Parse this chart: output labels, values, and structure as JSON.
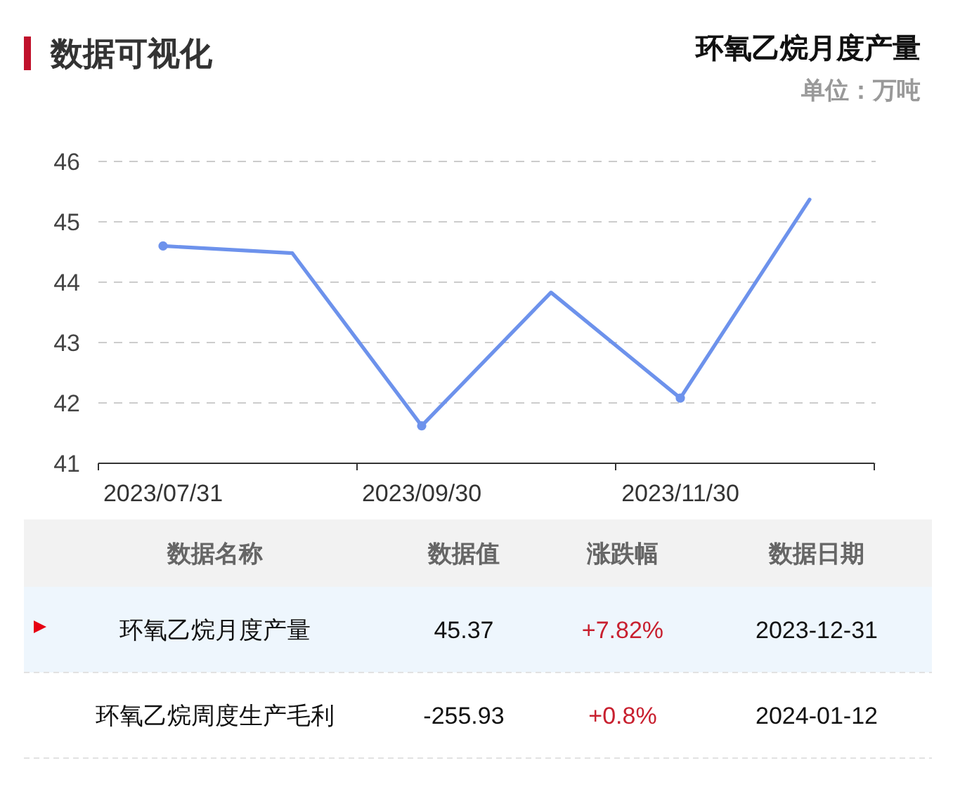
{
  "chart_data": [
    {
      "type": "line",
      "title": "环氧乙烷月度产量",
      "subtitle": "单位：万吨",
      "annotations": [
        "数据可视化"
      ],
      "categories": [
        "2023/07/31",
        null,
        "2023/09/30",
        null,
        "2023/11/30",
        null
      ],
      "series": [
        {
          "color": "#6d92ec",
          "values": [
            44.6,
            44.48,
            41.62,
            43.83,
            42.08,
            45.37
          ]
        }
      ],
      "ylim": [
        41,
        46
      ],
      "yticks": [
        41,
        42,
        43,
        44,
        45,
        46
      ],
      "grid": "y",
      "marker": "circle",
      "line_style": "solid"
    },
    {
      "type": "other",
      "annotations": [
        "数据名称",
        "数据值",
        "涨跌幅",
        "数据日期",
        "环氧乙烷月度产量",
        "45.37",
        "+7.82%",
        "2023-12-31",
        "环氧乙烷周度生产毛利",
        "-255.93",
        "+0.8%",
        "2024-01-12"
      ]
    }
  ]
}
